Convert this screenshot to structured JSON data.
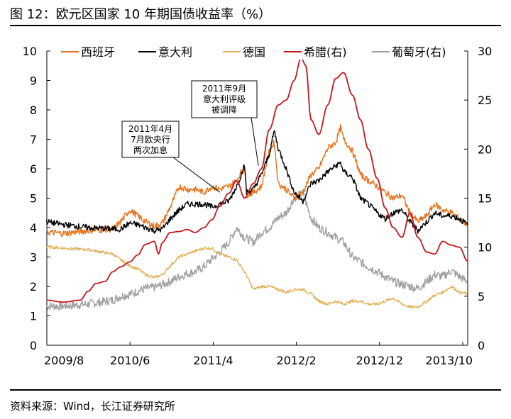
{
  "figure": {
    "title": "图 12：欧元区国家 10 年期国债收益率（%）",
    "source": "资料来源：Wind，长江证券研究所"
  },
  "chart_data": {
    "type": "line",
    "title": "欧元区国家 10 年期国债收益率（%）",
    "x_ticks": [
      "2009/8",
      "2010/6",
      "2011/4",
      "2012/2",
      "2012/12",
      "2013/10"
    ],
    "x_range": [
      "2009/8",
      "2013/11"
    ],
    "ylim_left": [
      0,
      10
    ],
    "yticks_left": [
      0,
      1,
      2,
      3,
      4,
      5,
      6,
      7,
      8,
      9,
      10
    ],
    "ylim_right": [
      0,
      30
    ],
    "yticks_right": [
      0,
      5,
      10,
      15,
      20,
      25,
      30
    ],
    "grid": false,
    "legend_position": "top",
    "series": [
      {
        "name": "西班牙",
        "axis": "left",
        "color": "#E8731A",
        "points": [
          [
            2009.58,
            3.85
          ],
          [
            2009.75,
            3.8
          ],
          [
            2010.0,
            3.9
          ],
          [
            2010.25,
            3.95
          ],
          [
            2010.33,
            4.2
          ],
          [
            2010.42,
            4.6
          ],
          [
            2010.5,
            4.4
          ],
          [
            2010.58,
            4.2
          ],
          [
            2010.67,
            4.05
          ],
          [
            2010.75,
            4.15
          ],
          [
            2010.83,
            4.7
          ],
          [
            2010.92,
            5.4
          ],
          [
            2011.0,
            5.3
          ],
          [
            2011.08,
            5.3
          ],
          [
            2011.17,
            5.2
          ],
          [
            2011.25,
            5.4
          ],
          [
            2011.33,
            5.3
          ],
          [
            2011.42,
            5.4
          ],
          [
            2011.5,
            5.6
          ],
          [
            2011.58,
            6.1
          ],
          [
            2011.6,
            5.1
          ],
          [
            2011.67,
            5.2
          ],
          [
            2011.75,
            5.4
          ],
          [
            2011.83,
            6.6
          ],
          [
            2011.88,
            6.9
          ],
          [
            2011.92,
            5.5
          ],
          [
            2012.0,
            5.3
          ],
          [
            2012.08,
            5.0
          ],
          [
            2012.17,
            5.2
          ],
          [
            2012.25,
            5.8
          ],
          [
            2012.33,
            6.0
          ],
          [
            2012.42,
            6.7
          ],
          [
            2012.5,
            6.9
          ],
          [
            2012.55,
            7.4
          ],
          [
            2012.58,
            7.0
          ],
          [
            2012.67,
            6.6
          ],
          [
            2012.75,
            5.8
          ],
          [
            2012.83,
            5.6
          ],
          [
            2012.92,
            5.4
          ],
          [
            2013.0,
            5.2
          ],
          [
            2013.08,
            5.0
          ],
          [
            2013.17,
            5.1
          ],
          [
            2013.25,
            4.5
          ],
          [
            2013.33,
            4.2
          ],
          [
            2013.42,
            4.4
          ],
          [
            2013.5,
            4.8
          ],
          [
            2013.58,
            4.6
          ],
          [
            2013.67,
            4.5
          ],
          [
            2013.75,
            4.3
          ],
          [
            2013.83,
            4.1
          ]
        ]
      },
      {
        "name": "意大利",
        "axis": "left",
        "color": "#000000",
        "points": [
          [
            2009.58,
            4.2
          ],
          [
            2009.75,
            4.1
          ],
          [
            2010.0,
            4.0
          ],
          [
            2010.25,
            3.95
          ],
          [
            2010.33,
            3.95
          ],
          [
            2010.42,
            4.15
          ],
          [
            2010.5,
            4.1
          ],
          [
            2010.58,
            4.0
          ],
          [
            2010.67,
            3.9
          ],
          [
            2010.75,
            3.95
          ],
          [
            2010.83,
            4.3
          ],
          [
            2010.92,
            4.6
          ],
          [
            2011.0,
            4.8
          ],
          [
            2011.08,
            4.8
          ],
          [
            2011.17,
            4.8
          ],
          [
            2011.25,
            4.7
          ],
          [
            2011.33,
            4.8
          ],
          [
            2011.42,
            4.9
          ],
          [
            2011.5,
            5.4
          ],
          [
            2011.58,
            6.1
          ],
          [
            2011.6,
            5.2
          ],
          [
            2011.67,
            5.3
          ],
          [
            2011.75,
            5.8
          ],
          [
            2011.83,
            6.5
          ],
          [
            2011.88,
            7.3
          ],
          [
            2011.92,
            6.7
          ],
          [
            2012.0,
            6.0
          ],
          [
            2012.08,
            5.2
          ],
          [
            2012.17,
            4.9
          ],
          [
            2012.25,
            5.5
          ],
          [
            2012.33,
            5.6
          ],
          [
            2012.42,
            5.9
          ],
          [
            2012.5,
            6.1
          ],
          [
            2012.55,
            6.2
          ],
          [
            2012.58,
            5.9
          ],
          [
            2012.67,
            5.7
          ],
          [
            2012.75,
            5.0
          ],
          [
            2012.83,
            4.8
          ],
          [
            2012.92,
            4.5
          ],
          [
            2013.0,
            4.3
          ],
          [
            2013.08,
            4.5
          ],
          [
            2013.17,
            4.6
          ],
          [
            2013.25,
            4.2
          ],
          [
            2013.33,
            3.9
          ],
          [
            2013.42,
            4.2
          ],
          [
            2013.5,
            4.5
          ],
          [
            2013.58,
            4.4
          ],
          [
            2013.67,
            4.4
          ],
          [
            2013.75,
            4.3
          ],
          [
            2013.83,
            4.1
          ]
        ]
      },
      {
        "name": "德国",
        "axis": "left",
        "color": "#E2B15A",
        "points": [
          [
            2009.58,
            3.35
          ],
          [
            2009.75,
            3.3
          ],
          [
            2010.0,
            3.25
          ],
          [
            2010.25,
            3.1
          ],
          [
            2010.33,
            2.9
          ],
          [
            2010.42,
            2.7
          ],
          [
            2010.5,
            2.6
          ],
          [
            2010.58,
            2.4
          ],
          [
            2010.67,
            2.3
          ],
          [
            2010.75,
            2.4
          ],
          [
            2010.83,
            2.7
          ],
          [
            2010.92,
            3.0
          ],
          [
            2011.0,
            3.1
          ],
          [
            2011.08,
            3.2
          ],
          [
            2011.17,
            3.3
          ],
          [
            2011.25,
            3.3
          ],
          [
            2011.33,
            3.1
          ],
          [
            2011.42,
            3.0
          ],
          [
            2011.5,
            2.9
          ],
          [
            2011.58,
            2.5
          ],
          [
            2011.67,
            1.9
          ],
          [
            2011.75,
            2.0
          ],
          [
            2011.83,
            2.0
          ],
          [
            2011.92,
            1.9
          ],
          [
            2012.0,
            1.8
          ],
          [
            2012.08,
            1.9
          ],
          [
            2012.17,
            1.9
          ],
          [
            2012.25,
            1.75
          ],
          [
            2012.33,
            1.5
          ],
          [
            2012.42,
            1.4
          ],
          [
            2012.5,
            1.5
          ],
          [
            2012.58,
            1.4
          ],
          [
            2012.67,
            1.5
          ],
          [
            2012.75,
            1.5
          ],
          [
            2012.83,
            1.4
          ],
          [
            2012.92,
            1.4
          ],
          [
            2013.0,
            1.5
          ],
          [
            2013.08,
            1.6
          ],
          [
            2013.17,
            1.4
          ],
          [
            2013.25,
            1.3
          ],
          [
            2013.33,
            1.3
          ],
          [
            2013.42,
            1.5
          ],
          [
            2013.5,
            1.7
          ],
          [
            2013.58,
            1.8
          ],
          [
            2013.67,
            2.0
          ],
          [
            2013.75,
            1.8
          ],
          [
            2013.83,
            1.75
          ]
        ]
      },
      {
        "name": "希腊(右)",
        "axis": "right",
        "color": "#C8161D",
        "points": [
          [
            2009.58,
            4.6
          ],
          [
            2009.75,
            4.4
          ],
          [
            2009.92,
            4.6
          ],
          [
            2010.0,
            5.5
          ],
          [
            2010.08,
            6.3
          ],
          [
            2010.17,
            6.5
          ],
          [
            2010.25,
            7.5
          ],
          [
            2010.33,
            8.0
          ],
          [
            2010.42,
            8.5
          ],
          [
            2010.5,
            9.2
          ],
          [
            2010.58,
            10.3
          ],
          [
            2010.67,
            10.6
          ],
          [
            2010.71,
            9.3
          ],
          [
            2010.75,
            10.5
          ],
          [
            2010.83,
            11.5
          ],
          [
            2010.92,
            11.6
          ],
          [
            2011.0,
            11.8
          ],
          [
            2011.08,
            11.5
          ],
          [
            2011.17,
            12.0
          ],
          [
            2011.25,
            12.8
          ],
          [
            2011.33,
            14.2
          ],
          [
            2011.42,
            15.5
          ],
          [
            2011.5,
            16.8
          ],
          [
            2011.58,
            15.0
          ],
          [
            2011.67,
            16.5
          ],
          [
            2011.75,
            18.0
          ],
          [
            2011.83,
            22.0
          ],
          [
            2011.92,
            24.5
          ],
          [
            2012.0,
            25.0
          ],
          [
            2012.08,
            27.0
          ],
          [
            2012.15,
            29.3
          ],
          [
            2012.2,
            28.5
          ],
          [
            2012.25,
            23.0
          ],
          [
            2012.33,
            21.5
          ],
          [
            2012.42,
            24.5
          ],
          [
            2012.5,
            27.2
          ],
          [
            2012.58,
            27.8
          ],
          [
            2012.67,
            25.5
          ],
          [
            2012.75,
            23.0
          ],
          [
            2012.83,
            20.0
          ],
          [
            2012.92,
            17.0
          ],
          [
            2013.0,
            14.0
          ],
          [
            2013.08,
            12.0
          ],
          [
            2013.17,
            11.0
          ],
          [
            2013.25,
            13.5
          ],
          [
            2013.33,
            11.0
          ],
          [
            2013.42,
            9.5
          ],
          [
            2013.5,
            9.3
          ],
          [
            2013.58,
            10.6
          ],
          [
            2013.67,
            10.2
          ],
          [
            2013.75,
            10.0
          ],
          [
            2013.83,
            8.6
          ]
        ]
      },
      {
        "name": "葡萄牙(右)",
        "axis": "right",
        "color": "#A0A0A0",
        "points": [
          [
            2009.58,
            4.0
          ],
          [
            2009.75,
            4.0
          ],
          [
            2010.0,
            4.2
          ],
          [
            2010.25,
            4.6
          ],
          [
            2010.33,
            5.0
          ],
          [
            2010.42,
            5.2
          ],
          [
            2010.5,
            5.5
          ],
          [
            2010.58,
            5.8
          ],
          [
            2010.67,
            5.9
          ],
          [
            2010.75,
            6.2
          ],
          [
            2010.83,
            6.5
          ],
          [
            2010.92,
            7.0
          ],
          [
            2011.0,
            7.3
          ],
          [
            2011.08,
            7.5
          ],
          [
            2011.17,
            8.0
          ],
          [
            2011.25,
            8.8
          ],
          [
            2011.33,
            9.5
          ],
          [
            2011.42,
            10.5
          ],
          [
            2011.5,
            12.0
          ],
          [
            2011.58,
            11.0
          ],
          [
            2011.67,
            10.5
          ],
          [
            2011.75,
            11.5
          ],
          [
            2011.83,
            12.0
          ],
          [
            2011.92,
            13.0
          ],
          [
            2012.0,
            13.5
          ],
          [
            2012.08,
            15.0
          ],
          [
            2012.17,
            15.5
          ],
          [
            2012.25,
            13.0
          ],
          [
            2012.33,
            12.0
          ],
          [
            2012.42,
            11.5
          ],
          [
            2012.5,
            11.0
          ],
          [
            2012.58,
            10.5
          ],
          [
            2012.67,
            9.0
          ],
          [
            2012.75,
            8.5
          ],
          [
            2012.83,
            8.0
          ],
          [
            2012.92,
            7.5
          ],
          [
            2013.0,
            7.0
          ],
          [
            2013.08,
            6.5
          ],
          [
            2013.17,
            6.2
          ],
          [
            2013.25,
            6.0
          ],
          [
            2013.33,
            5.8
          ],
          [
            2013.42,
            6.5
          ],
          [
            2013.5,
            7.2
          ],
          [
            2013.58,
            7.0
          ],
          [
            2013.67,
            7.6
          ],
          [
            2013.75,
            7.0
          ],
          [
            2013.83,
            6.5
          ]
        ]
      }
    ],
    "annotations": [
      {
        "lines": [
          "2011年4月",
          "7月欧央行",
          "两次加息"
        ],
        "target_x": 2011.33,
        "target_y": 5.2,
        "anchor_x": 2011.07,
        "anchor_y": 6.3
      },
      {
        "lines": [
          "2011年9月",
          "意大利评级",
          "被调降"
        ],
        "target_x": 2011.72,
        "target_y": 6.1,
        "anchor_x": 2011.52,
        "anchor_y": 7.9
      }
    ]
  }
}
